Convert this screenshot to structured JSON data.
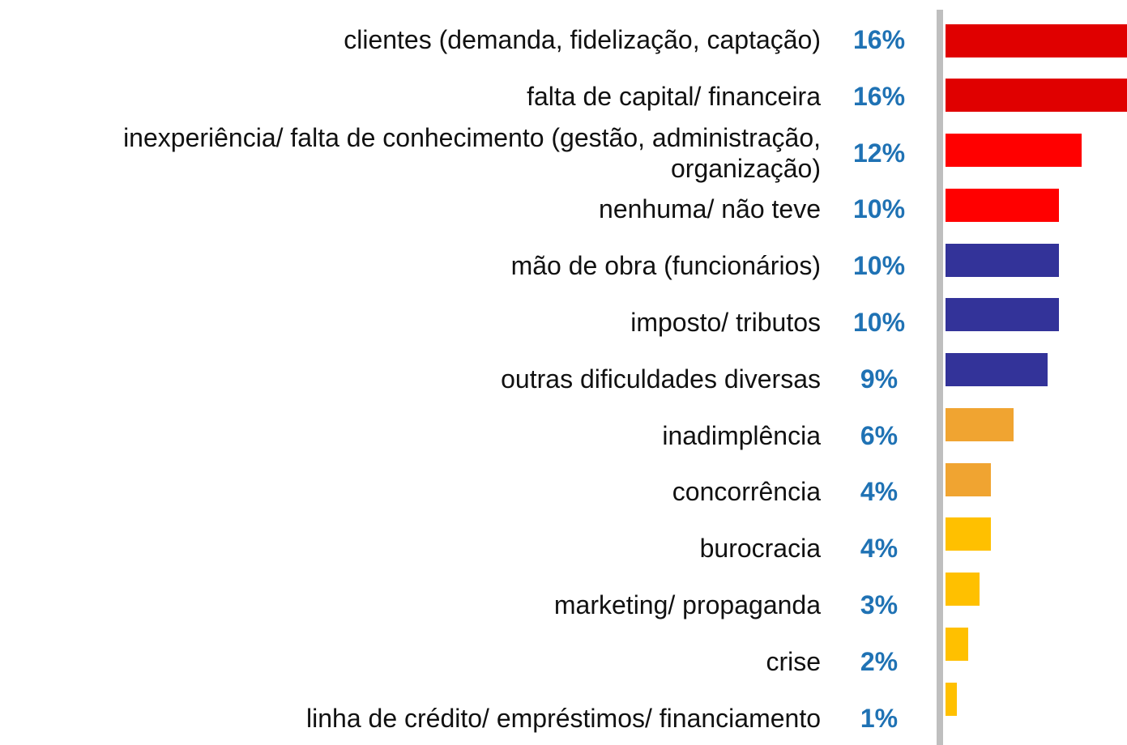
{
  "chart_data": {
    "type": "barh",
    "categories": [
      "clientes (demanda, fidelização, captação)",
      "falta de capital/ financeira",
      "inexperiência/ falta de conhecimento (gestão, administração, organização)",
      "nenhuma/ não teve",
      "mão de obra (funcionários)",
      "imposto/ tributos",
      "outras dificuldades diversas",
      "inadimplência",
      "concorrência",
      "burocracia",
      "marketing/ propaganda",
      "crise",
      "linha de crédito/ empréstimos/ financiamento"
    ],
    "values": [
      16,
      16,
      12,
      10,
      10,
      10,
      9,
      6,
      4,
      4,
      3,
      2,
      1
    ],
    "value_labels": [
      "16%",
      "16%",
      "12%",
      "10%",
      "10%",
      "10%",
      "9%",
      "6%",
      "4%",
      "4%",
      "3%",
      "2%",
      "1%"
    ],
    "colors": [
      "#e00000",
      "#e00000",
      "#ff0000",
      "#ff0000",
      "#333399",
      "#333399",
      "#333399",
      "#f0a431",
      "#f0a431",
      "#ffc000",
      "#ffc000",
      "#ffc000",
      "#ffc000"
    ]
  }
}
